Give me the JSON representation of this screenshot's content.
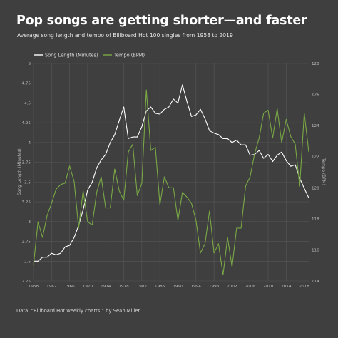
{
  "header": {
    "title": "Pop songs are getting shorter—and faster",
    "subtitle": "Average song length and tempo of Billboard Hot 100 singles from 1958 to 2019"
  },
  "footer": {
    "source": "Data: “Billboard Hot weekly charts,” by Sean Miller"
  },
  "colors": {
    "background": "#3f3f3f",
    "grid": "#575757",
    "length_line": "#ffffff",
    "tempo_line": "#79a845"
  },
  "chart_data": {
    "type": "line",
    "title": "Pop songs are getting shorter—and faster",
    "subtitle": "Average song length and tempo of Billboard Hot 100 singles from 1958 to 2019",
    "grid": true,
    "legend_placement": "top",
    "x_ticks": [
      "1958",
      "1962",
      "1966",
      "1970",
      "1974",
      "1978",
      "1982",
      "1986",
      "1990",
      "1994",
      "1998",
      "2002",
      "2006",
      "2010",
      "2014",
      "2018"
    ],
    "xlim": [
      1958,
      2019
    ],
    "y_left": {
      "label": "Song Length (Minutes)",
      "range": [
        2.25,
        5
      ],
      "ticks": [
        "2.25",
        "2.5",
        "2.75",
        "3",
        "3.25",
        "3.5",
        "3.75",
        "4",
        "4.25",
        "4.5",
        "4.75",
        "5"
      ]
    },
    "y_right": {
      "label": "Tempo (BPM)",
      "range": [
        114,
        128
      ],
      "ticks": [
        "114",
        "116",
        "118",
        "120",
        "122",
        "124",
        "126",
        "128"
      ]
    },
    "series": [
      {
        "name": "Song Length (Minutes)",
        "axis": "left",
        "x": [
          1958,
          1959,
          1960,
          1961,
          1962,
          1963,
          1964,
          1965,
          1966,
          1967,
          1968,
          1969,
          1970,
          1971,
          1972,
          1973,
          1974,
          1975,
          1976,
          1977,
          1978,
          1979,
          1980,
          1981,
          1982,
          1983,
          1984,
          1985,
          1986,
          1987,
          1988,
          1989,
          1990,
          1991,
          1992,
          1993,
          1994,
          1995,
          1996,
          1997,
          1998,
          1999,
          2000,
          2001,
          2002,
          2003,
          2004,
          2005,
          2006,
          2007,
          2008,
          2009,
          2010,
          2011,
          2012,
          2013,
          2014,
          2015,
          2016,
          2017,
          2018,
          2019
        ],
        "values": [
          2.5,
          2.5,
          2.55,
          2.55,
          2.6,
          2.58,
          2.6,
          2.68,
          2.7,
          2.8,
          2.95,
          3.15,
          3.4,
          3.5,
          3.68,
          3.78,
          3.85,
          4.0,
          4.1,
          4.28,
          4.45,
          4.05,
          4.07,
          4.07,
          4.2,
          4.4,
          4.45,
          4.37,
          4.36,
          4.42,
          4.45,
          4.55,
          4.5,
          4.73,
          4.52,
          4.33,
          4.35,
          4.42,
          4.3,
          4.15,
          4.12,
          4.1,
          4.05,
          4.05,
          4.0,
          4.03,
          3.97,
          3.97,
          3.84,
          3.85,
          3.9,
          3.8,
          3.85,
          3.76,
          3.84,
          3.88,
          3.77,
          3.7,
          3.72,
          3.55,
          3.42,
          3.3
        ]
      },
      {
        "name": "Tempo (BPM)",
        "axis": "right",
        "x": [
          1958,
          1959,
          1960,
          1961,
          1962,
          1963,
          1964,
          1965,
          1966,
          1967,
          1968,
          1969,
          1970,
          1971,
          1972,
          1973,
          1974,
          1975,
          1976,
          1977,
          1978,
          1979,
          1980,
          1981,
          1982,
          1983,
          1984,
          1985,
          1986,
          1987,
          1988,
          1989,
          1990,
          1991,
          1992,
          1993,
          1994,
          1995,
          1996,
          1997,
          1998,
          1999,
          2000,
          2001,
          2002,
          2003,
          2004,
          2005,
          2006,
          2007,
          2008,
          2009,
          2010,
          2011,
          2012,
          2013,
          2014,
          2015,
          2016,
          2017,
          2018,
          2019
        ],
        "values": [
          115.0,
          117.8,
          116.8,
          118.2,
          119.0,
          119.9,
          120.2,
          120.3,
          121.4,
          120.4,
          117.4,
          119.8,
          117.8,
          117.6,
          119.7,
          120.7,
          118.7,
          118.7,
          121.2,
          119.8,
          119.2,
          122.3,
          122.8,
          119.5,
          120.3,
          126.3,
          122.4,
          122.6,
          118.9,
          120.7,
          120.0,
          120.0,
          117.9,
          119.7,
          119.4,
          119.0,
          117.9,
          115.8,
          116.4,
          118.5,
          115.8,
          116.4,
          114.4,
          116.8,
          114.9,
          117.4,
          117.4,
          120.1,
          120.7,
          122.2,
          123.2,
          124.8,
          125.0,
          123.2,
          125.1,
          122.9,
          124.4,
          123.3,
          122.8,
          120.1,
          124.8,
          122.3
        ]
      }
    ]
  }
}
